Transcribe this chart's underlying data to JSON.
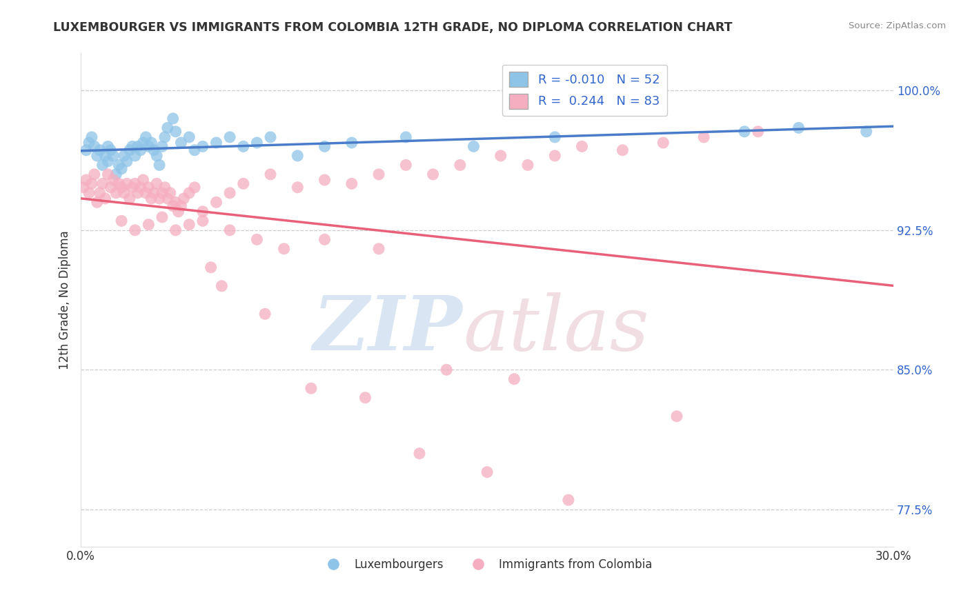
{
  "title": "LUXEMBOURGER VS IMMIGRANTS FROM COLOMBIA 12TH GRADE, NO DIPLOMA CORRELATION CHART",
  "source": "Source: ZipAtlas.com",
  "ylabel": "12th Grade, No Diploma",
  "xlim": [
    0.0,
    30.0
  ],
  "ylim": [
    75.5,
    102.0
  ],
  "yticks": [
    77.5,
    85.0,
    92.5,
    100.0
  ],
  "ytick_labels": [
    "77.5%",
    "85.0%",
    "92.5%",
    "100.0%"
  ],
  "blue_R": -0.01,
  "blue_N": 52,
  "pink_R": 0.244,
  "pink_N": 83,
  "blue_color": "#8ec4e8",
  "pink_color": "#f5aec0",
  "blue_line_color": "#4a7cc9",
  "pink_line_color": "#e8607a",
  "legend_blue_label": "Luxembourgers",
  "legend_pink_label": "Immigrants from Colombia",
  "blue_scatter_x": [
    0.2,
    0.3,
    0.4,
    0.5,
    0.6,
    0.7,
    0.8,
    0.9,
    1.0,
    1.0,
    1.1,
    1.2,
    1.3,
    1.4,
    1.5,
    1.6,
    1.7,
    1.8,
    1.9,
    2.0,
    2.1,
    2.2,
    2.3,
    2.4,
    2.5,
    2.6,
    2.7,
    2.8,
    2.9,
    3.0,
    3.1,
    3.2,
    3.4,
    3.5,
    3.7,
    4.0,
    4.2,
    4.5,
    5.0,
    5.5,
    6.0,
    6.5,
    7.0,
    8.0,
    9.0,
    10.0,
    12.0,
    14.5,
    17.5,
    24.5,
    26.5,
    29.0
  ],
  "blue_scatter_y": [
    96.8,
    97.2,
    97.5,
    97.0,
    96.5,
    96.8,
    96.0,
    96.5,
    96.2,
    97.0,
    96.8,
    96.5,
    95.5,
    96.0,
    95.8,
    96.5,
    96.2,
    96.8,
    97.0,
    96.5,
    97.0,
    96.8,
    97.2,
    97.5,
    97.0,
    97.2,
    96.8,
    96.5,
    96.0,
    97.0,
    97.5,
    98.0,
    98.5,
    97.8,
    97.2,
    97.5,
    96.8,
    97.0,
    97.2,
    97.5,
    97.0,
    97.2,
    97.5,
    96.5,
    97.0,
    97.2,
    97.5,
    97.0,
    97.5,
    97.8,
    98.0,
    97.8
  ],
  "pink_scatter_x": [
    0.1,
    0.2,
    0.3,
    0.4,
    0.5,
    0.6,
    0.7,
    0.8,
    0.9,
    1.0,
    1.1,
    1.2,
    1.3,
    1.4,
    1.5,
    1.6,
    1.7,
    1.8,
    1.9,
    2.0,
    2.1,
    2.2,
    2.3,
    2.4,
    2.5,
    2.6,
    2.7,
    2.8,
    2.9,
    3.0,
    3.1,
    3.2,
    3.3,
    3.4,
    3.5,
    3.6,
    3.7,
    3.8,
    4.0,
    4.2,
    4.5,
    5.0,
    5.5,
    6.0,
    7.0,
    8.0,
    9.0,
    10.0,
    11.0,
    12.0,
    13.0,
    14.0,
    15.5,
    16.5,
    17.5,
    18.5,
    20.0,
    21.5,
    23.0,
    25.0,
    1.5,
    2.0,
    2.5,
    3.0,
    3.5,
    4.0,
    4.5,
    5.5,
    6.5,
    7.5,
    9.0,
    11.0,
    13.5,
    16.0,
    4.8,
    5.2,
    6.8,
    8.5,
    10.5,
    12.5,
    15.0,
    18.0,
    22.0
  ],
  "pink_scatter_y": [
    94.8,
    95.2,
    94.5,
    95.0,
    95.5,
    94.0,
    94.5,
    95.0,
    94.2,
    95.5,
    94.8,
    95.2,
    94.5,
    95.0,
    94.8,
    94.5,
    95.0,
    94.2,
    94.8,
    95.0,
    94.5,
    94.8,
    95.2,
    94.5,
    94.8,
    94.2,
    94.5,
    95.0,
    94.2,
    94.5,
    94.8,
    94.2,
    94.5,
    93.8,
    94.0,
    93.5,
    93.8,
    94.2,
    94.5,
    94.8,
    93.5,
    94.0,
    94.5,
    95.0,
    95.5,
    94.8,
    95.2,
    95.0,
    95.5,
    96.0,
    95.5,
    96.0,
    96.5,
    96.0,
    96.5,
    97.0,
    96.8,
    97.2,
    97.5,
    97.8,
    93.0,
    92.5,
    92.8,
    93.2,
    92.5,
    92.8,
    93.0,
    92.5,
    92.0,
    91.5,
    92.0,
    91.5,
    85.0,
    84.5,
    90.5,
    89.5,
    88.0,
    84.0,
    83.5,
    80.5,
    79.5,
    78.0,
    82.5
  ]
}
